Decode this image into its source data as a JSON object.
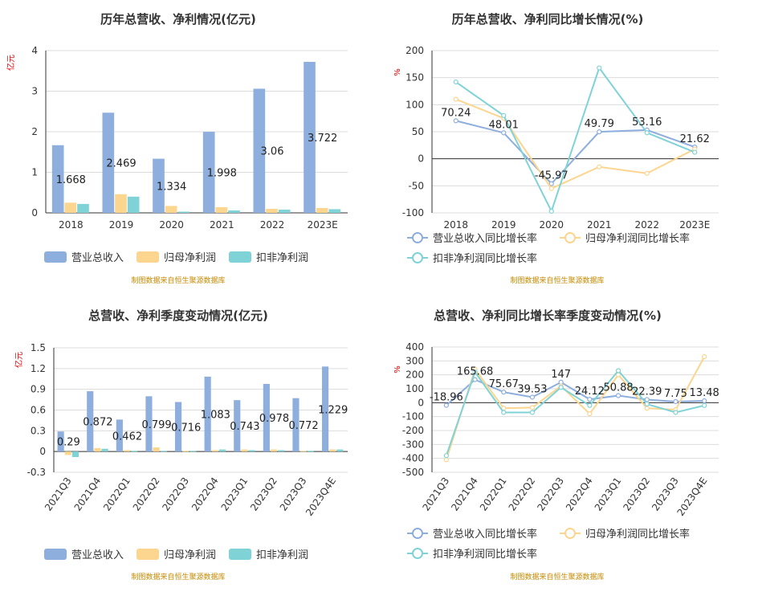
{
  "source_note": "制图数据来自恒生聚源数据库",
  "colors": {
    "revenue": "#8eaede",
    "parent_np": "#fcd58f",
    "deducted_np": "#7fd3d7",
    "axis_unit": "#e00000",
    "source": "#c48a00"
  },
  "chart_data": [
    {
      "type": "bar",
      "title": "历年总营收、净利情况(亿元)",
      "yunit": "亿元",
      "ylim": [
        0,
        4
      ],
      "yticks": [
        0,
        1,
        2,
        3,
        4
      ],
      "categories": [
        "2018",
        "2019",
        "2020",
        "2021",
        "2022",
        "2023E"
      ],
      "series": [
        {
          "name": "营业总收入",
          "values": [
            1.668,
            2.469,
            1.334,
            1.998,
            3.06,
            3.722
          ],
          "labels": [
            "1.668",
            "2.469",
            "1.334",
            "1.998",
            "3.06",
            "3.722"
          ]
        },
        {
          "name": "归母净利润",
          "values": [
            0.25,
            0.46,
            0.17,
            0.14,
            0.1,
            0.12
          ]
        },
        {
          "name": "扣非净利润",
          "values": [
            0.22,
            0.4,
            0.03,
            0.06,
            0.08,
            0.09
          ]
        }
      ],
      "legend_position": "bottom"
    },
    {
      "type": "line",
      "title": "历年总营收、净利同比增长情况(%)",
      "yunit": "%",
      "ylim": [
        -100,
        200
      ],
      "yticks": [
        -100,
        -50,
        0,
        50,
        100,
        150,
        200
      ],
      "categories": [
        "2018",
        "2019",
        "2020",
        "2021",
        "2022",
        "2023E"
      ],
      "series": [
        {
          "name": "营业总收入同比增长率",
          "values": [
            70.24,
            48.01,
            -45.97,
            49.79,
            53.16,
            21.62
          ],
          "labels": [
            "70.24",
            "48.01",
            "-45.97",
            "49.79",
            "53.16",
            "21.62"
          ]
        },
        {
          "name": "归母净利润同比增长率",
          "values": [
            110,
            75,
            -55,
            -15,
            -27,
            18
          ]
        },
        {
          "name": "扣非净利润同比增长率",
          "values": [
            142,
            80,
            -97,
            168,
            48,
            12
          ]
        }
      ],
      "legend_position": "bottom"
    },
    {
      "type": "bar",
      "title": "总营收、净利季度变动情况(亿元)",
      "yunit": "亿元",
      "ylim": [
        -0.3,
        1.5
      ],
      "yticks": [
        -0.3,
        0,
        0.3,
        0.6,
        0.9,
        1.2,
        1.5
      ],
      "categories": [
        "2021Q3",
        "2021Q4",
        "2022Q1",
        "2022Q2",
        "2022Q3",
        "2022Q4",
        "2023Q1",
        "2023Q2",
        "2023Q3",
        "2023Q4E"
      ],
      "series": [
        {
          "name": "营业总收入",
          "values": [
            0.29,
            0.872,
            0.462,
            0.799,
            0.716,
            1.083,
            0.743,
            0.978,
            0.772,
            1.229
          ],
          "labels": [
            "0.29",
            "0.872",
            "0.462",
            "0.799",
            "0.716",
            "1.083",
            "0.743",
            "0.978",
            "0.772",
            "1.229"
          ]
        },
        {
          "name": "归母净利润",
          "values": [
            -0.05,
            0.05,
            0.02,
            0.06,
            0.01,
            0.02,
            0.03,
            0.03,
            0.01,
            0.03
          ]
        },
        {
          "name": "扣非净利润",
          "values": [
            -0.08,
            0.04,
            0.01,
            0.01,
            0.01,
            0.03,
            0.02,
            0.02,
            0.01,
            0.03
          ]
        }
      ],
      "legend_position": "bottom"
    },
    {
      "type": "line",
      "title": "总营收、净利同比增长率季度变动情况(%)",
      "yunit": "%",
      "ylim": [
        -500,
        400
      ],
      "yticks": [
        -500,
        -400,
        -300,
        -200,
        -100,
        0,
        100,
        200,
        300,
        400
      ],
      "categories": [
        "2021Q3",
        "2021Q4",
        "2022Q1",
        "2022Q2",
        "2022Q3",
        "2022Q4",
        "2023Q1",
        "2023Q2",
        "2023Q3",
        "2023Q4E"
      ],
      "series": [
        {
          "name": "营业总收入同比增长率",
          "values": [
            -18.96,
            165.68,
            75.67,
            39.53,
            147,
            24.12,
            50.88,
            22.39,
            7.75,
            13.48
          ],
          "labels": [
            "-18.96",
            "165.68",
            "75.67",
            "39.53",
            "147",
            "24.12",
            "50.88",
            "22.39",
            "7.75",
            "13.48"
          ]
        },
        {
          "name": "归母净利润同比增长率",
          "values": [
            -410,
            240,
            -40,
            -35,
            120,
            -80,
            200,
            -40,
            -50,
            330
          ]
        },
        {
          "name": "扣非净利润同比增长率",
          "values": [
            -380,
            220,
            -70,
            -70,
            110,
            -20,
            230,
            -10,
            -70,
            -20
          ]
        }
      ],
      "legend_position": "bottom"
    }
  ]
}
